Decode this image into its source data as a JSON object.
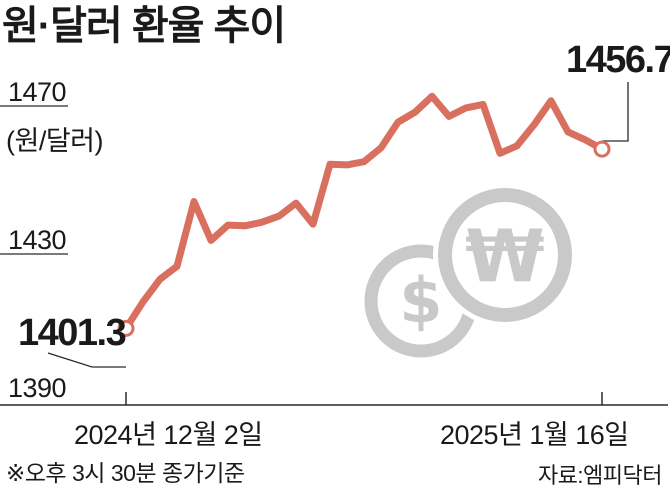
{
  "chart_data": {
    "type": "line",
    "title": "원·달러 환율 추이",
    "ylabel": "(원/달러)",
    "xlabel": "",
    "ylim": [
      1390,
      1470
    ],
    "yticks": [
      1390,
      1430,
      1470
    ],
    "ytick_labels": [
      "1390",
      "1430",
      "1470"
    ],
    "xtick_labels": [
      "2024년 12월 2일",
      "2025년 1월 16일"
    ],
    "grid": false,
    "series": [
      {
        "color": "#d9705f",
        "values": [
          1401.3,
          1409.5,
          1416.5,
          1420.5,
          1440.5,
          1428.5,
          1433.2,
          1433.0,
          1434.1,
          1436.0,
          1440.0,
          1433.5,
          1452.0,
          1451.8,
          1452.8,
          1457.1,
          1465.0,
          1468.1,
          1473.0,
          1466.8,
          1469.4,
          1470.5,
          1455.4,
          1457.7,
          1464.2,
          1471.6,
          1462.0,
          1459.6,
          1456.7
        ]
      }
    ],
    "annotations": [
      {
        "text": "1401.3",
        "point": "start",
        "value": 1401.3
      },
      {
        "text": "1456.7",
        "point": "end",
        "value": 1456.7
      }
    ],
    "note": "※오후 3시 30분 종가기준",
    "source": "자료:엠피닥터"
  },
  "colors": {
    "line": "#d9705f",
    "icon": "#c9c9c9",
    "text": "#1a1a1a"
  },
  "decoration": {
    "icons": [
      "dollar-coin-icon",
      "won-coin-icon"
    ],
    "dollar_symbol": "$",
    "won_symbol": "₩"
  }
}
